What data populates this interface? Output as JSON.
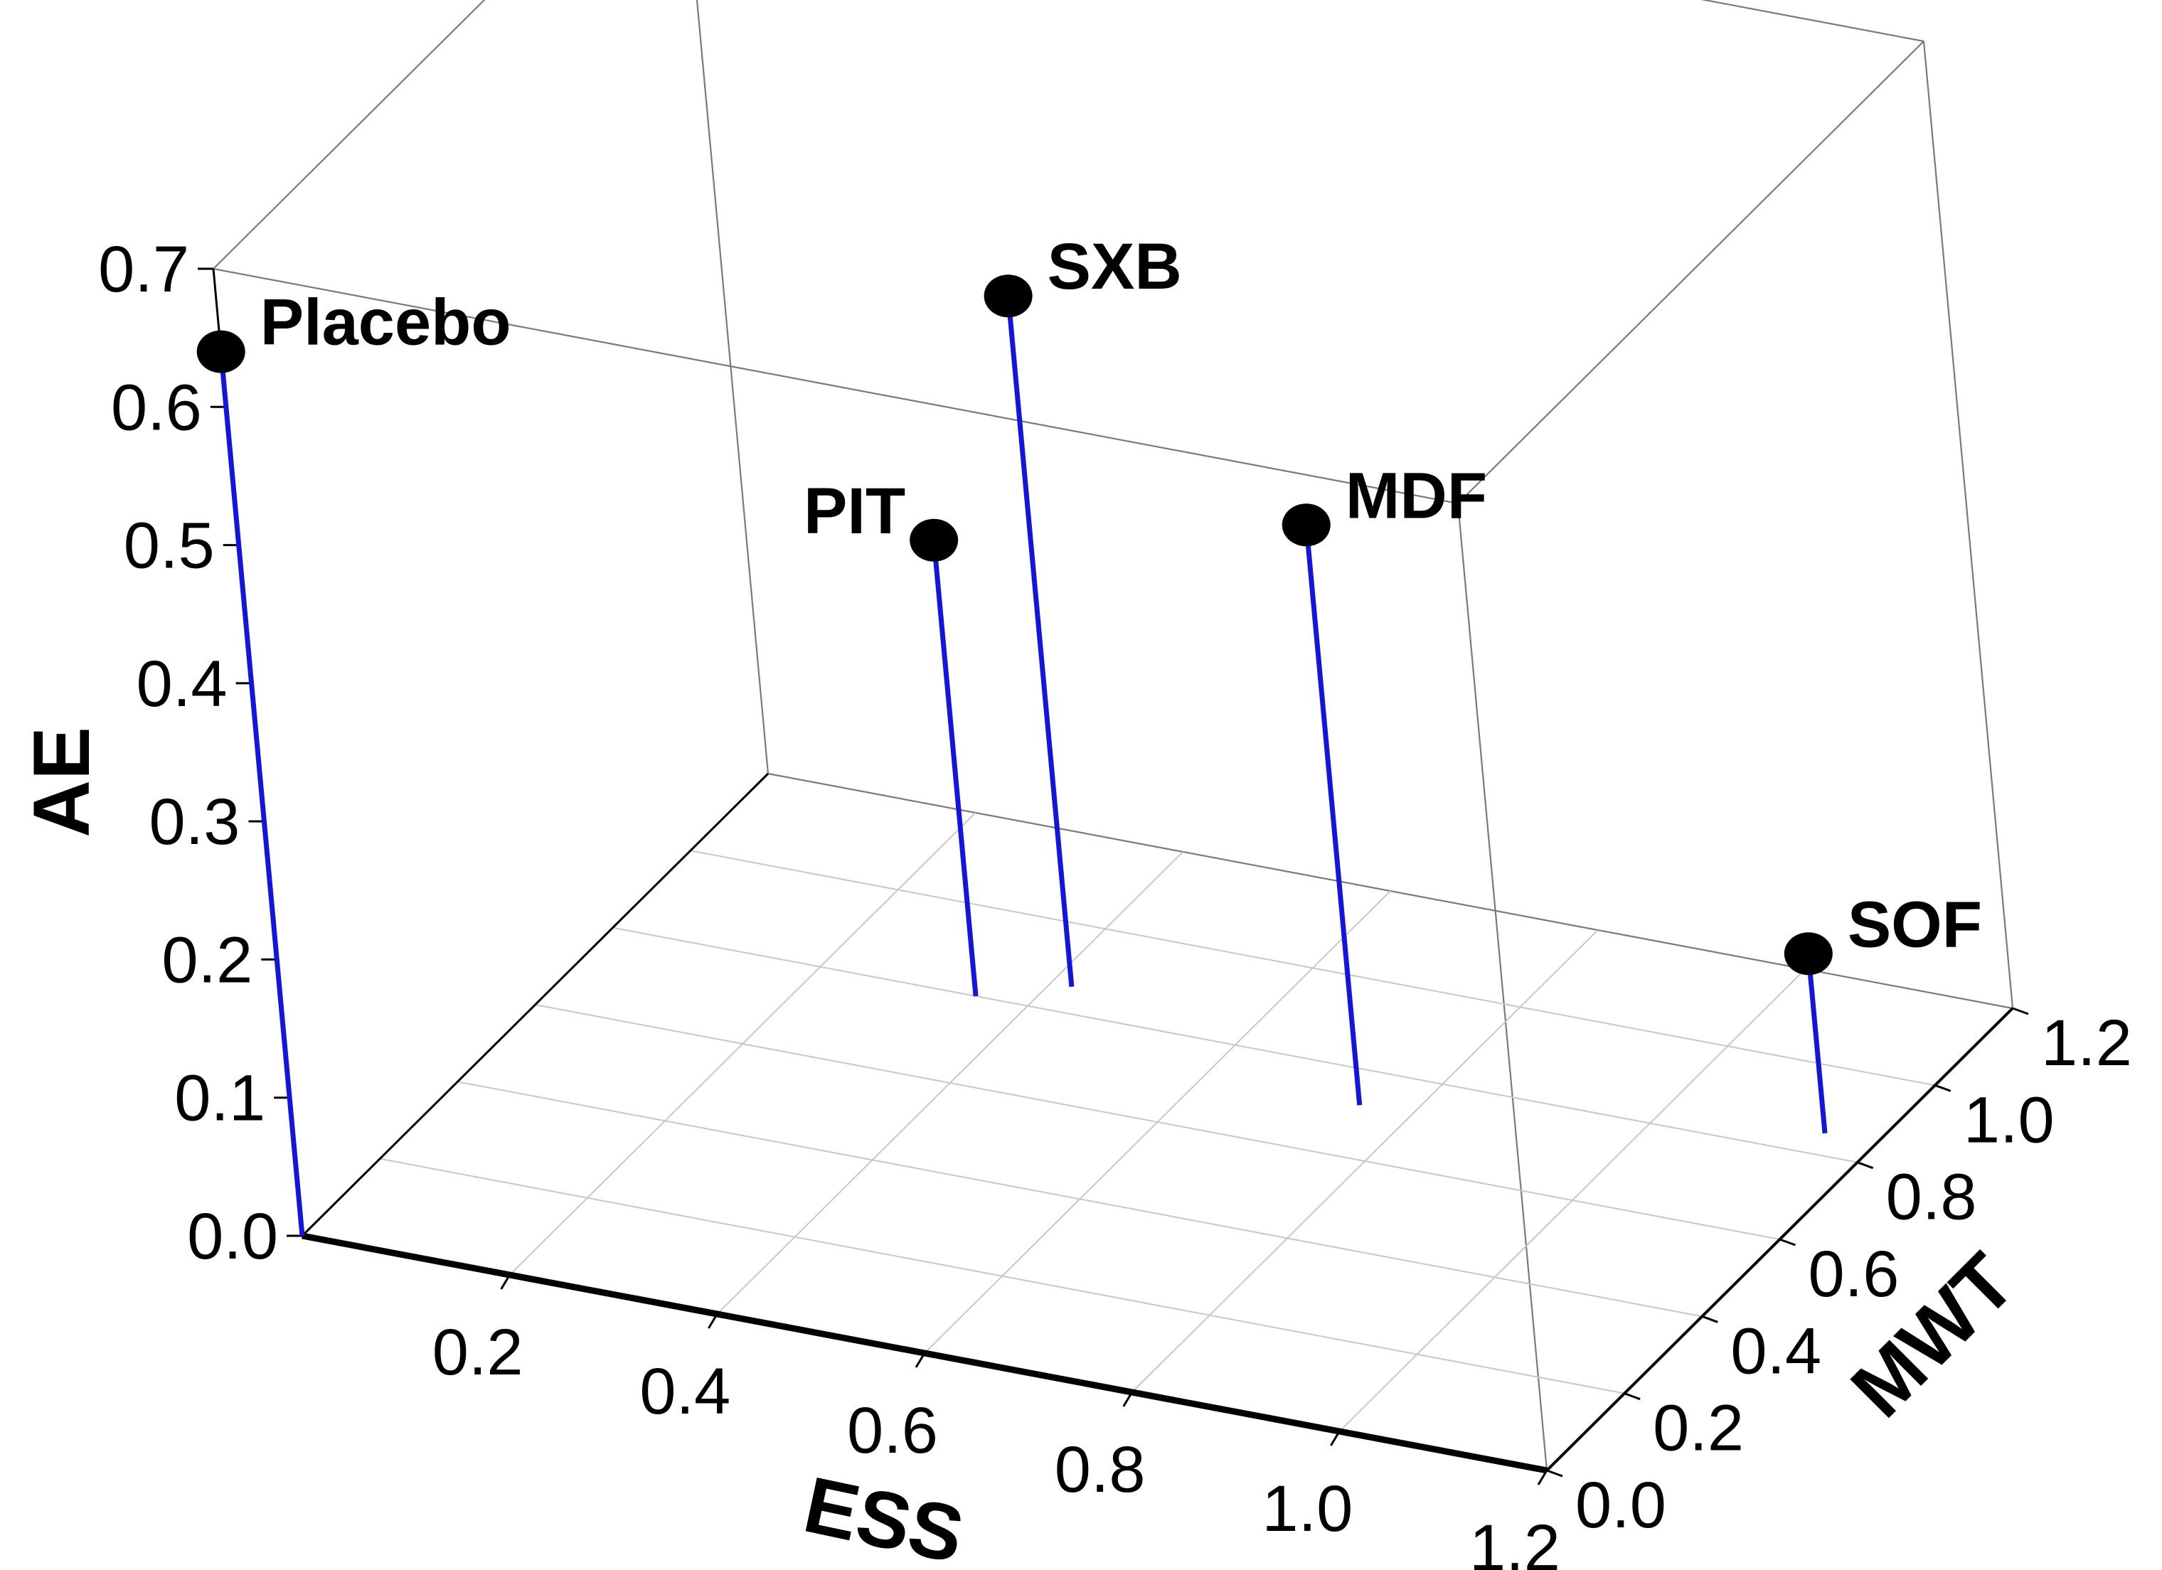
{
  "chart_data": {
    "type": "scatter3d",
    "title": "",
    "xlabel": "ESS",
    "ylabel": "MWT",
    "zlabel": "AE",
    "xlim": [
      0.0,
      1.2
    ],
    "ylim": [
      0.0,
      1.2
    ],
    "zlim": [
      0.0,
      0.7
    ],
    "x_ticks": [
      "0.2",
      "0.4",
      "0.6",
      "0.8",
      "1.0",
      "1.2"
    ],
    "y_ticks": [
      "0.0",
      "0.2",
      "0.4",
      "0.6",
      "0.8",
      "1.0",
      "1.2"
    ],
    "z_ticks": [
      "0.0",
      "0.1",
      "0.2",
      "0.3",
      "0.4",
      "0.5",
      "0.6",
      "0.7"
    ],
    "grid": true,
    "drop_lines": true,
    "drop_line_color": "#1414dc",
    "marker_color": "#000000",
    "points": [
      {
        "label": "Placebo",
        "x": 0.0,
        "y": 0.0,
        "z": 0.64
      },
      {
        "label": "PIT",
        "x": 0.35,
        "y": 0.8,
        "z": 0.33
      },
      {
        "label": "SXB",
        "x": 0.42,
        "y": 0.86,
        "z": 0.5
      },
      {
        "label": "MDF",
        "x": 0.75,
        "y": 0.72,
        "z": 0.42
      },
      {
        "label": "SOF",
        "x": 1.15,
        "y": 0.85,
        "z": 0.13
      }
    ]
  }
}
